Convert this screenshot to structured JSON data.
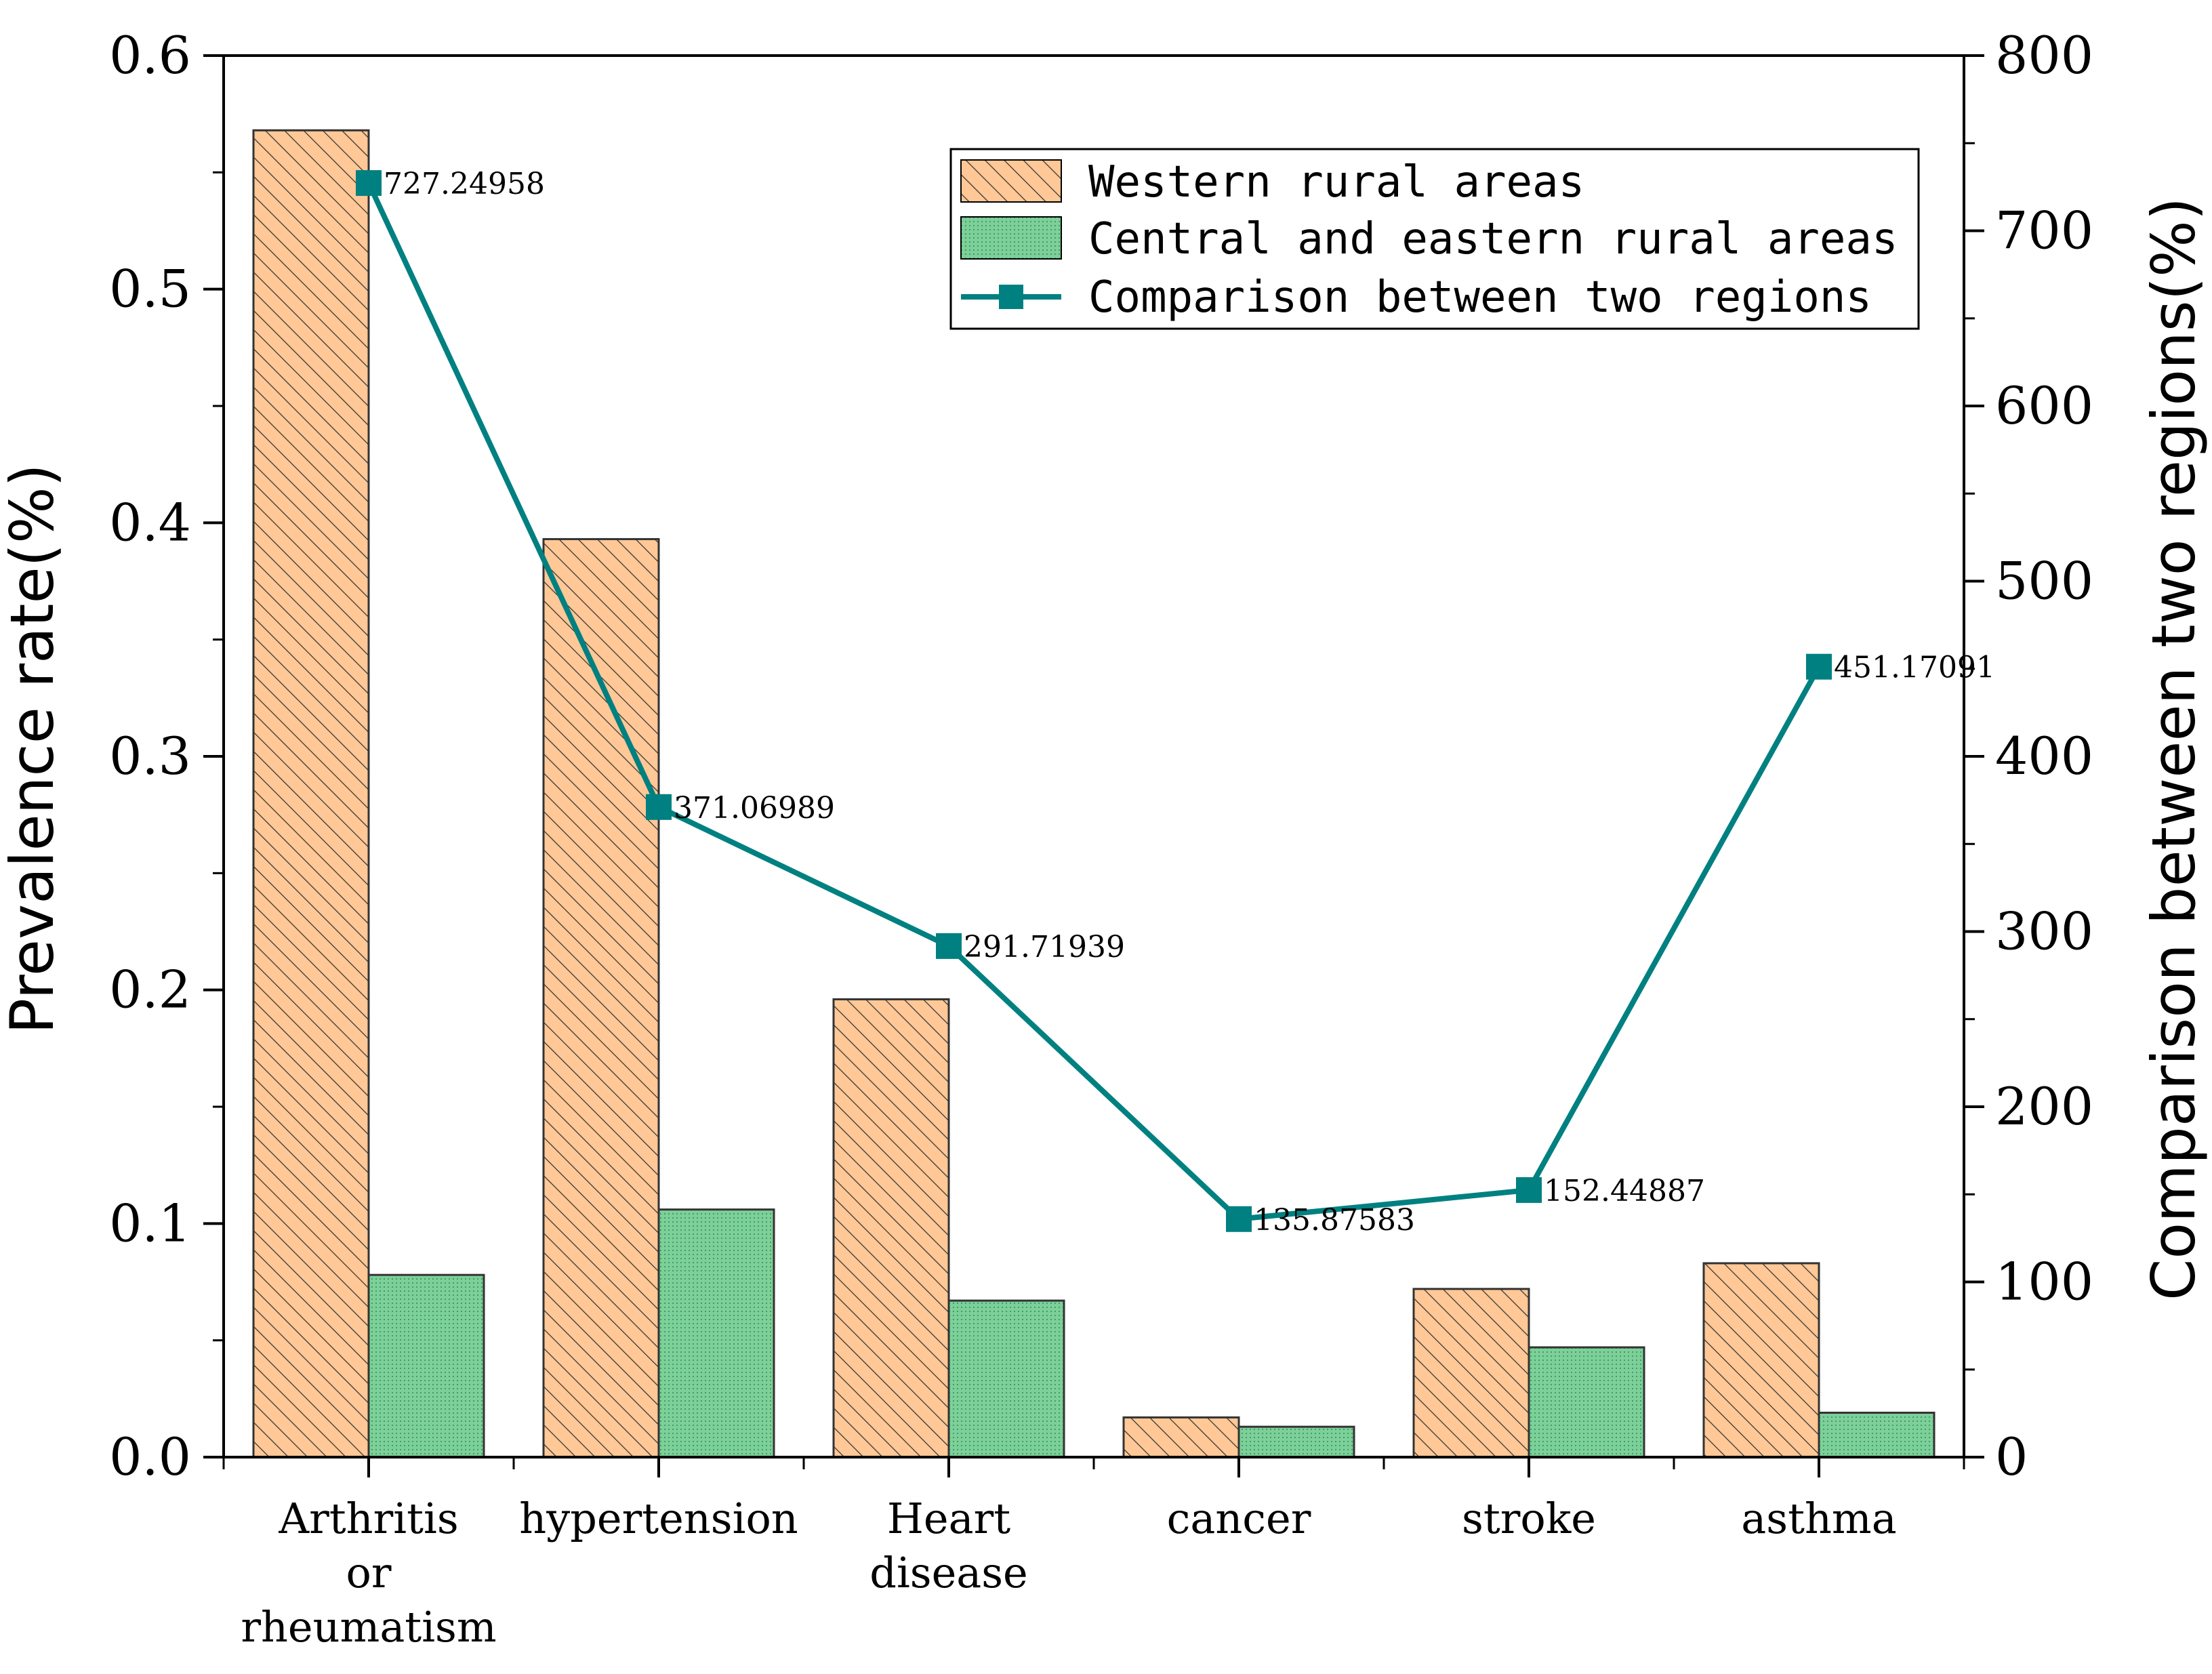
{
  "chart_data": {
    "type": "bar",
    "categories": [
      [
        "Arthritis",
        "or",
        "rheumatism"
      ],
      [
        "hypertension"
      ],
      [
        "Heart",
        "disease"
      ],
      [
        "cancer"
      ],
      [
        "stroke"
      ],
      [
        "asthma"
      ]
    ],
    "series": [
      {
        "name": "Western rural areas",
        "axis": "left",
        "kind": "bar",
        "color": "#FFC896",
        "values": [
          0.568,
          0.393,
          0.196,
          0.017,
          0.072,
          0.083
        ]
      },
      {
        "name": "Central and eastern rural areas",
        "axis": "left",
        "kind": "bar",
        "color": "#7DD09A",
        "values": [
          0.078,
          0.106,
          0.067,
          0.013,
          0.047,
          0.019
        ]
      },
      {
        "name": "Comparison between two regions",
        "axis": "right",
        "kind": "line",
        "color": "#008080",
        "values": [
          727.24958,
          371.06989,
          291.71939,
          135.87583,
          152.44887,
          451.17091
        ],
        "labels": [
          "727.24958",
          "371.06989",
          "291.71939",
          "135.87583",
          "152.44887",
          "451.17091"
        ]
      }
    ],
    "y_left": {
      "label": "Prevalence rate(%)",
      "range": [
        0,
        0.6
      ],
      "ticks": [
        0,
        0.1,
        0.2,
        0.3,
        0.4,
        0.5,
        0.6
      ],
      "tick_labels": [
        "0.0",
        "0.1",
        "0.2",
        "0.3",
        "0.4",
        "0.5",
        "0.6"
      ]
    },
    "y_right": {
      "label": "Comparison between two regions(%)",
      "range": [
        0,
        800
      ],
      "ticks": [
        0,
        100,
        200,
        300,
        400,
        500,
        600,
        700,
        800
      ],
      "tick_labels": [
        "0",
        "100",
        "200",
        "300",
        "400",
        "500",
        "600",
        "700",
        "800"
      ]
    },
    "legend_position": "top-right",
    "grid": false
  }
}
